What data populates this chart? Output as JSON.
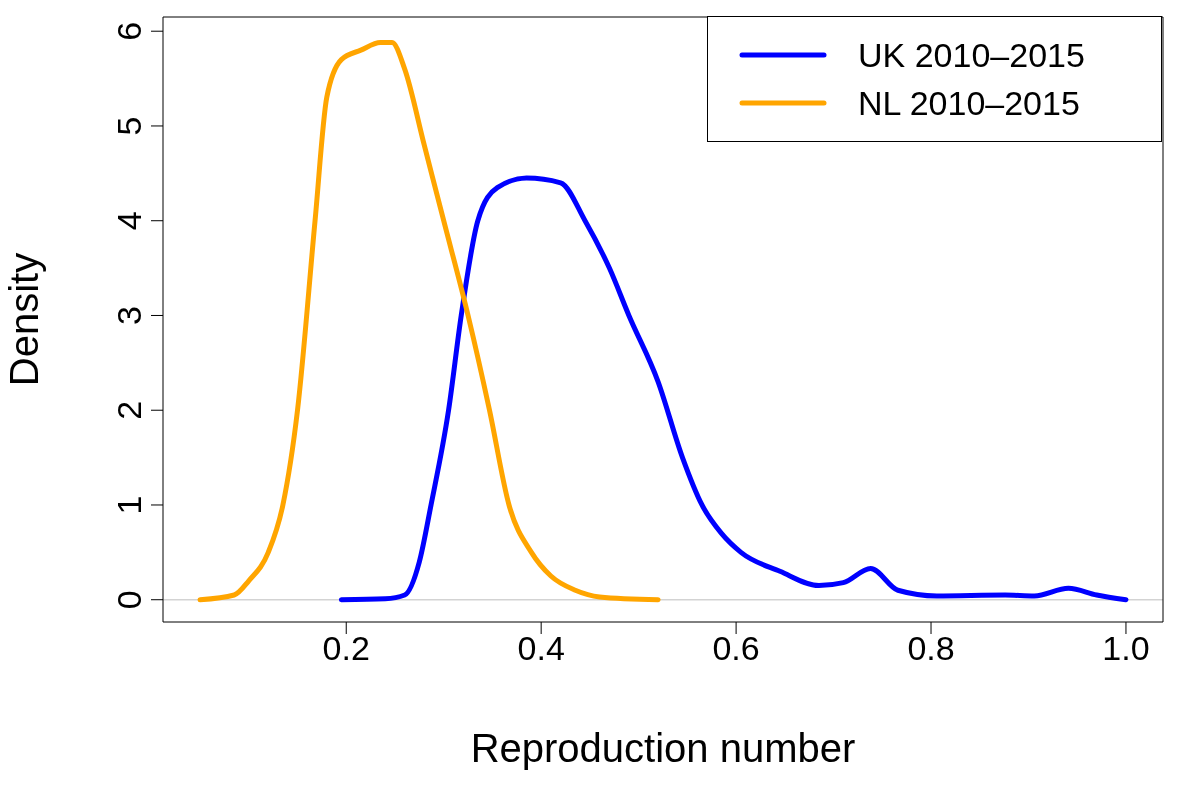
{
  "chart_data": {
    "type": "line",
    "xlabel": "Reproduction number",
    "ylabel": "Density",
    "xlim": [
      0.012,
      1.038
    ],
    "ylim": [
      -0.235,
      6.15
    ],
    "xticks": [
      {
        "value": 0.2,
        "label": "0.2"
      },
      {
        "value": 0.4,
        "label": "0.4"
      },
      {
        "value": 0.6,
        "label": "0.6"
      },
      {
        "value": 0.8,
        "label": "0.8"
      },
      {
        "value": 1.0,
        "label": "1.0"
      }
    ],
    "yticks": [
      0,
      1,
      2,
      3,
      4,
      5,
      6
    ],
    "legend": "top right",
    "marker": "none",
    "line_style": "solid",
    "grid": false,
    "ref_lines": [
      {
        "axis": "y",
        "value": 0,
        "color": "#d3d3d3"
      }
    ],
    "series": [
      {
        "name": "UK 2010–2015",
        "color": "#0000ff",
        "x": [
          0.195,
          0.24,
          0.26,
          0.275,
          0.287,
          0.305,
          0.318,
          0.335,
          0.355,
          0.385,
          0.42,
          0.445,
          0.47,
          0.49,
          0.52,
          0.545,
          0.565,
          0.585,
          0.605,
          0.645,
          0.685,
          0.71,
          0.738,
          0.766,
          0.806,
          0.876,
          0.906,
          0.941,
          0.97,
          1.0
        ],
        "values": [
          0,
          0.01,
          0.05,
          0.4,
          1,
          2,
          3,
          4,
          4.35,
          4.45,
          4.4,
          4.0,
          3.5,
          3.0,
          2.3,
          1.5,
          1.0,
          0.7,
          0.5,
          0.3,
          0.15,
          0.18,
          0.33,
          0.1,
          0.04,
          0.05,
          0.04,
          0.12,
          0.05,
          0
        ]
      },
      {
        "name": "NL 2010–2015",
        "color": "#ffa500",
        "x": [
          0.05,
          0.085,
          0.1,
          0.12,
          0.135,
          0.15,
          0.168,
          0.18,
          0.195,
          0.215,
          0.235,
          0.247,
          0.26,
          0.28,
          0.3,
          0.325,
          0.347,
          0.367,
          0.39,
          0.41,
          0.435,
          0.46,
          0.52
        ],
        "values": [
          0,
          0.05,
          0.2,
          0.5,
          1.0,
          2,
          4,
          5.3,
          5.7,
          5.8,
          5.88,
          5.88,
          5.6,
          4.8,
          4,
          3,
          2,
          1,
          0.5,
          0.25,
          0.1,
          0.03,
          0
        ]
      }
    ]
  }
}
